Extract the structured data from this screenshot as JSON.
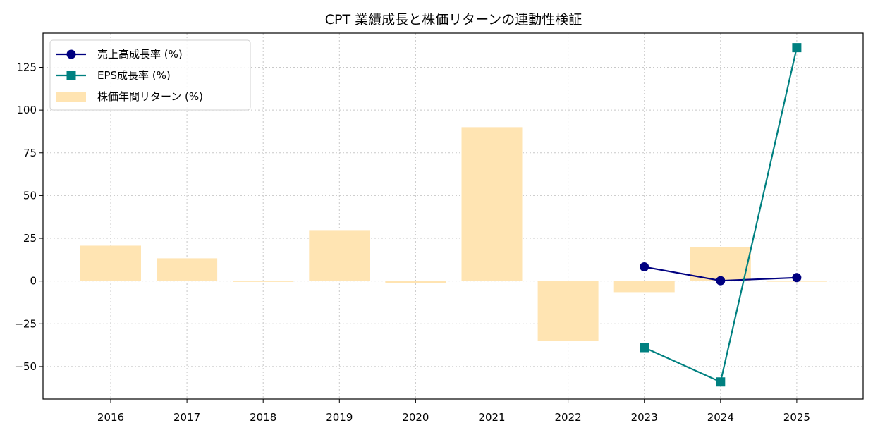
{
  "chart_data": {
    "type": "bar",
    "title": "CPT 業績成長と株価リターンの連動性検証",
    "xlabel": "",
    "ylabel": "",
    "categories": [
      "2016",
      "2017",
      "2018",
      "2019",
      "2020",
      "2021",
      "2022",
      "2023",
      "2024",
      "2025"
    ],
    "yticks": [
      -50,
      -25,
      0,
      25,
      50,
      75,
      100,
      125
    ],
    "ylim": [
      -69,
      145
    ],
    "grid": true,
    "legend_position": "top-left",
    "series": [
      {
        "name": "売上高成長率 (%)",
        "type": "line",
        "marker": "circle",
        "color": "#000080",
        "values": [
          null,
          null,
          null,
          null,
          null,
          null,
          null,
          8.3,
          0.2,
          2.0
        ]
      },
      {
        "name": "EPS成長率 (%)",
        "type": "line",
        "marker": "square",
        "color": "#008080",
        "values": [
          null,
          null,
          null,
          null,
          null,
          null,
          null,
          -38.9,
          -59.0,
          136.5
        ]
      },
      {
        "name": "株価年間リターン (%)",
        "type": "bar",
        "color": "#ffe4b2",
        "values": [
          20.7,
          13.3,
          -0.5,
          29.8,
          -1.0,
          90.0,
          -34.8,
          -6.5,
          19.9,
          -0.4
        ]
      }
    ]
  }
}
